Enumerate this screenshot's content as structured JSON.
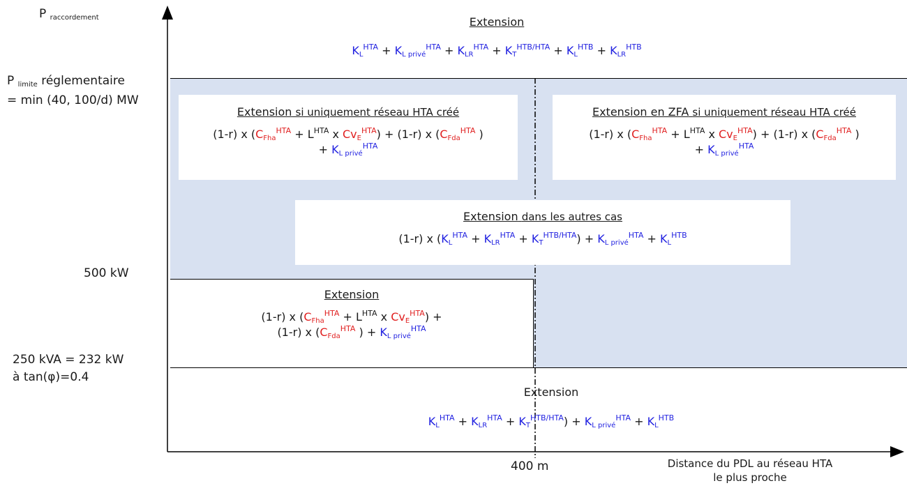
{
  "y_axis": {
    "p_label": "P",
    "p_sub": "raccordement",
    "limit_p": "P",
    "limit_sub": "limite",
    "limit_rest": "réglementaire",
    "limit_line2": "= min (40, 100/d) MW",
    "tick_500": "500 kW",
    "tick_250_line1": "250 kVA = 232 kW",
    "tick_250_line2": "à tan(φ)=0.4"
  },
  "x_axis": {
    "tick_400": "400 m",
    "label_line1": "Distance du PDL au réseau HTA",
    "label_line2": "le plus proche"
  },
  "regions": {
    "top": {
      "title": "Extension"
    },
    "box_left": {
      "title_a": "Extension",
      "title_b": "si uniquement réseau HTA créé"
    },
    "box_right": {
      "title_a": "Extension en ZFA",
      "title_b": "si uniquement réseau HTA créé"
    },
    "box_middle": {
      "title_a": "Extension",
      "title_b": "dans les autres cas"
    },
    "box_low": {
      "title": "Extension"
    },
    "bottom": {
      "title": "Extension"
    }
  },
  "colors": {
    "shaded": "#d8e1f1",
    "blue_terms": "#1f1fe0",
    "red_terms": "#e01f1f"
  }
}
